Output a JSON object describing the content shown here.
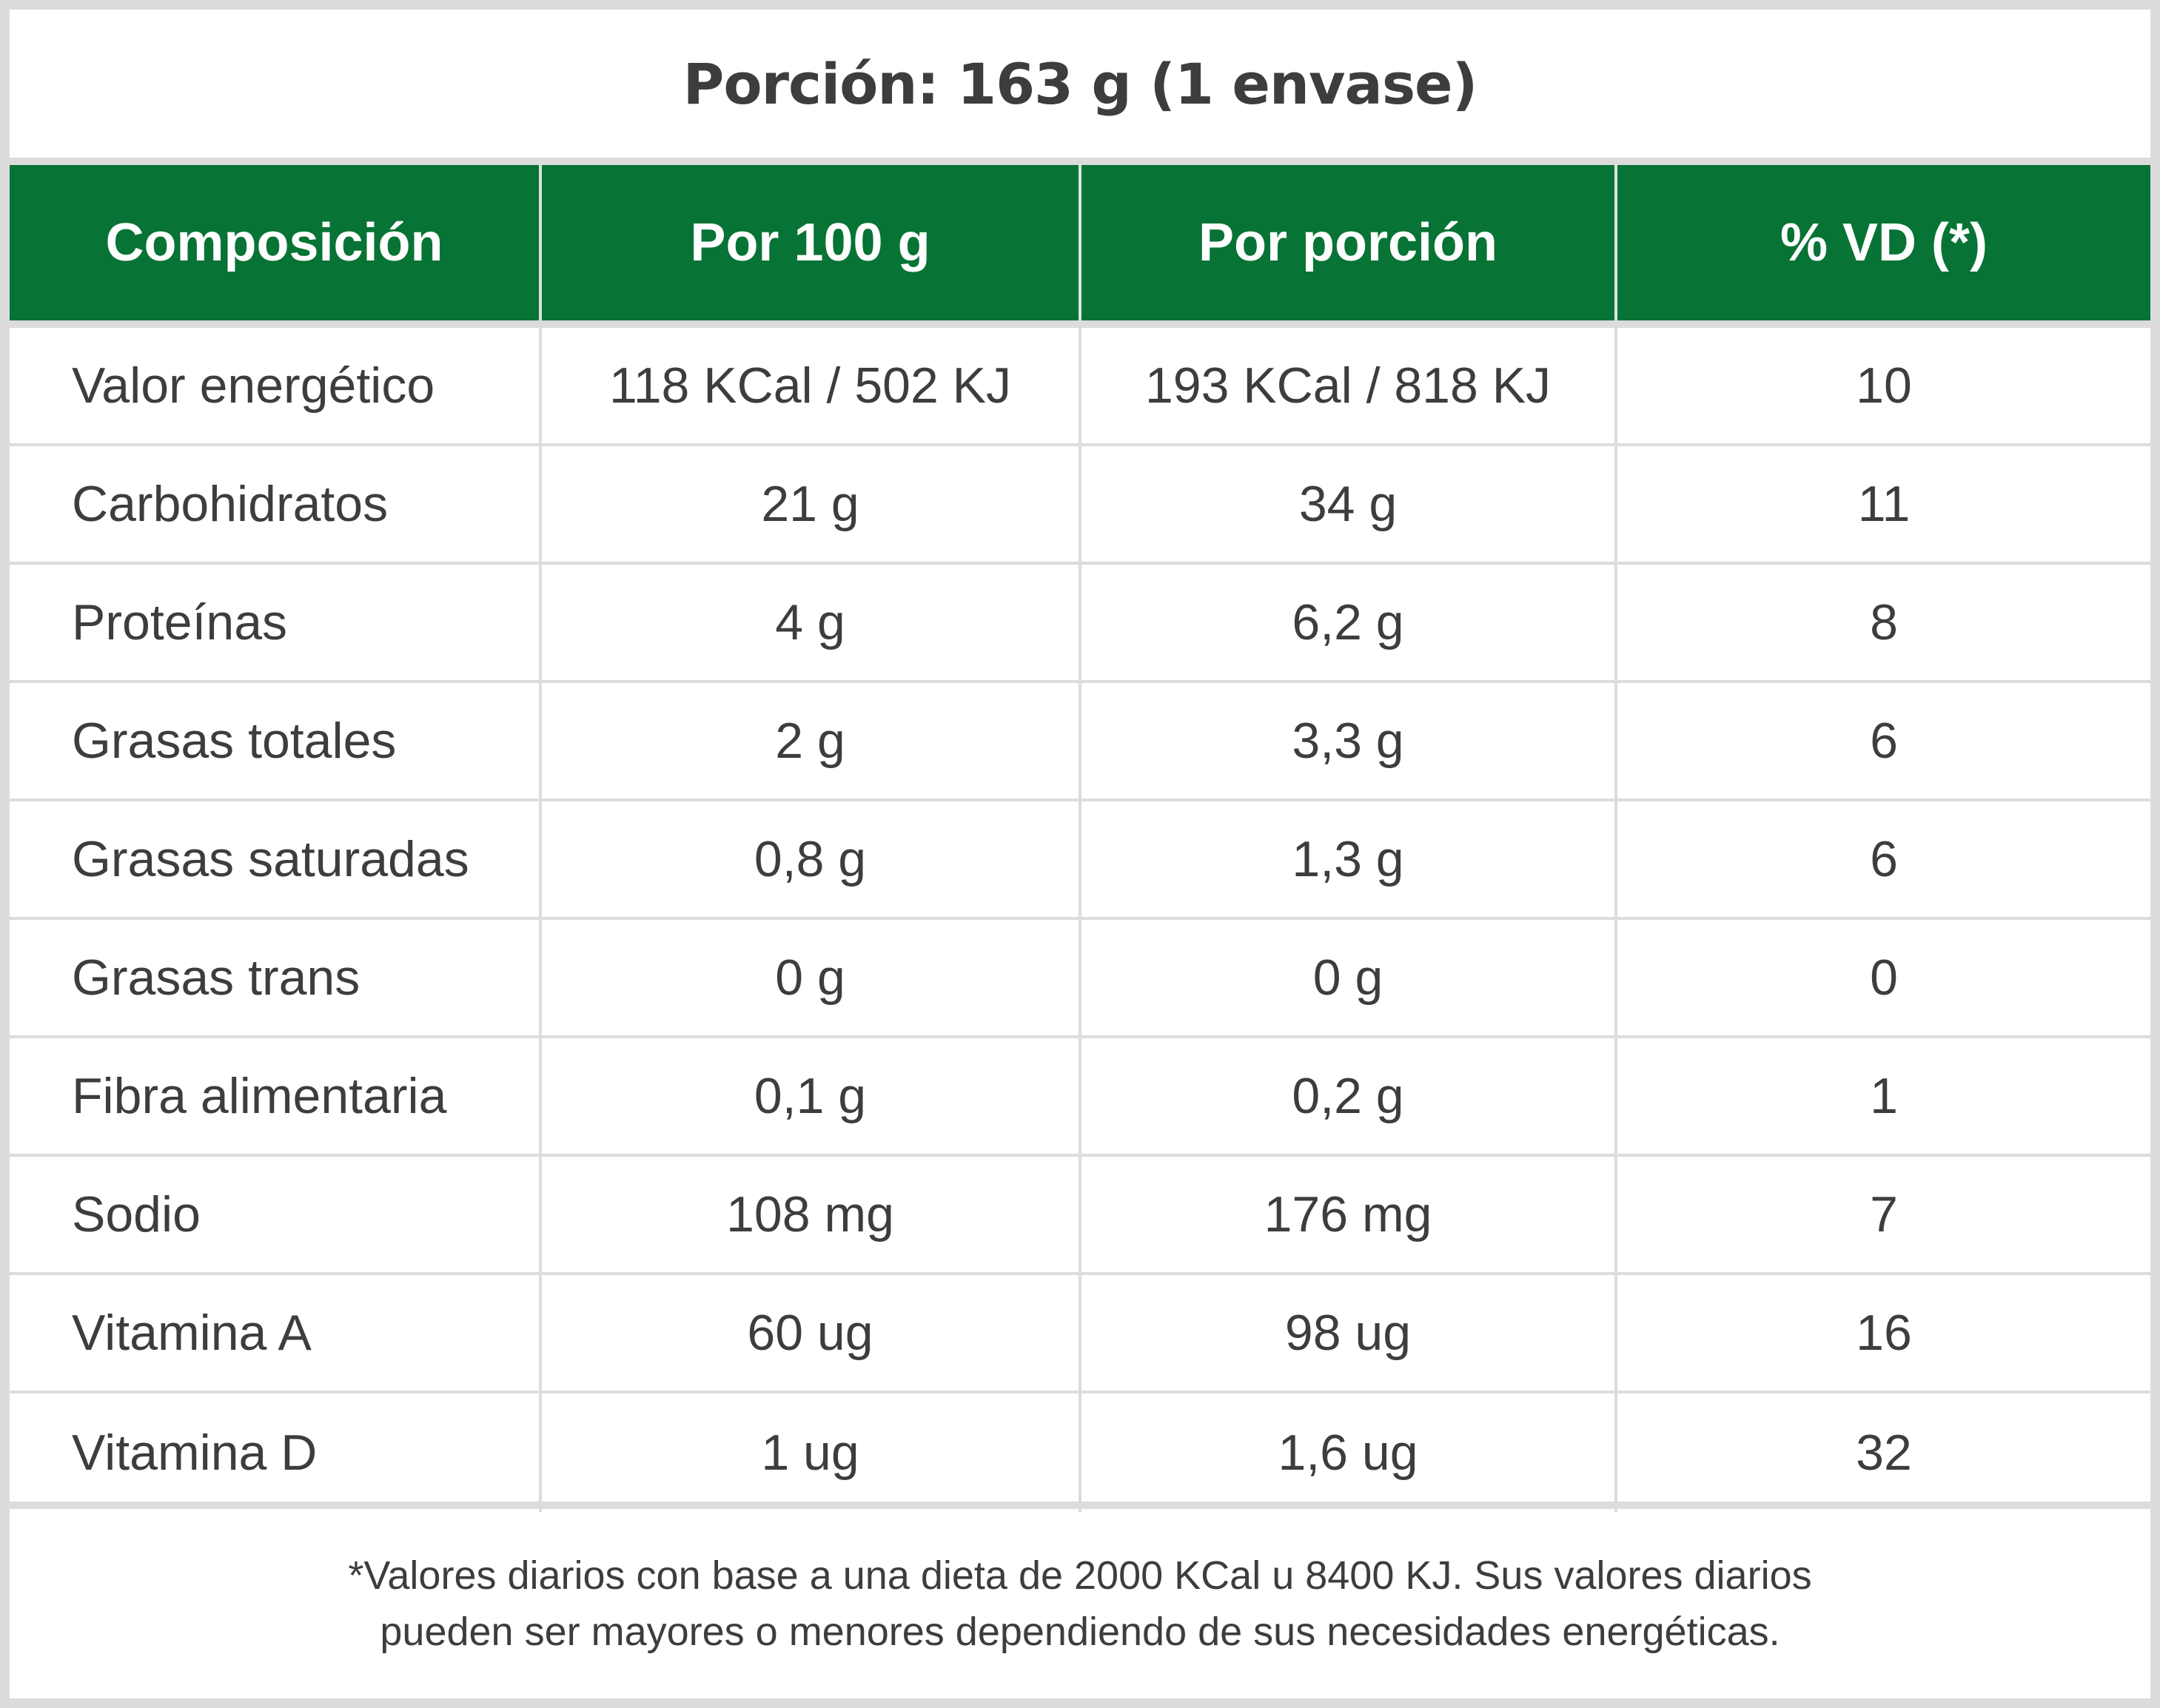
{
  "title": "Porción: 163 g (1 envase)",
  "colors": {
    "header_bg": "#077335",
    "border": "#dcdcdc",
    "text": "#3d3d3d"
  },
  "table": {
    "headers": [
      "Composición",
      "Por 100 g",
      "Por porción",
      "% VD (*)"
    ],
    "rows": [
      [
        "Valor energético",
        "118 KCal / 502 KJ",
        "193 KCal / 818 KJ",
        "10"
      ],
      [
        "Carbohidratos",
        "21 g",
        "34 g",
        "11"
      ],
      [
        "Proteínas",
        "4 g",
        "6,2 g",
        "8"
      ],
      [
        "Grasas totales",
        "2 g",
        "3,3 g",
        "6"
      ],
      [
        "Grasas saturadas",
        "0,8 g",
        "1,3 g",
        "6"
      ],
      [
        "Grasas trans",
        "0 g",
        "0 g",
        "0"
      ],
      [
        "Fibra alimentaria",
        "0,1 g",
        "0,2 g",
        "1"
      ],
      [
        "Sodio",
        "108 mg",
        "176 mg",
        "7"
      ],
      [
        "Vitamina A",
        "60 ug",
        "98 ug",
        "16"
      ],
      [
        "Vitamina D",
        "1 ug",
        "1,6 ug",
        "32"
      ]
    ]
  },
  "footnote": {
    "line1": "*Valores diarios con base a una dieta de 2000 KCal u 8400 KJ. Sus valores diarios",
    "line2": "pueden ser mayores o menores dependiendo de sus necesidades energéticas."
  }
}
